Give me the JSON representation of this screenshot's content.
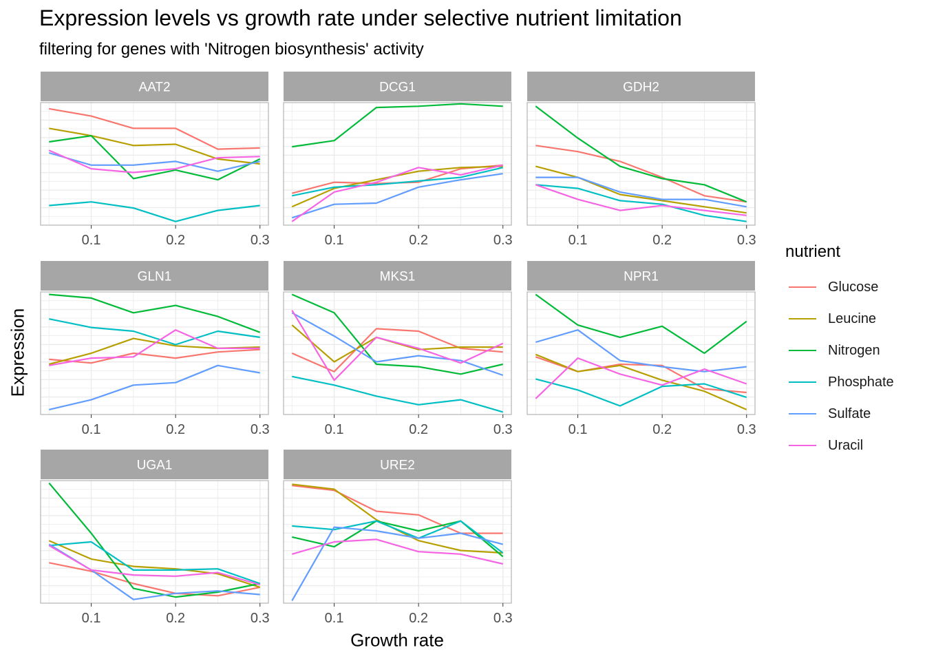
{
  "title": "Expression levels vs growth rate under selective nutrient limitation",
  "subtitle": "filtering for genes with 'Nitrogen biosynthesis' activity",
  "chart_data": {
    "type": "line",
    "title": "Expression levels vs growth rate under selective nutrient limitation",
    "subtitle": "filtering for genes with 'Nitrogen biosynthesis' activity",
    "xlabel": "Growth rate",
    "ylabel": "Expression",
    "x": [
      0.05,
      0.1,
      0.15,
      0.2,
      0.25,
      0.3
    ],
    "xlim": [
      0.04,
      0.31
    ],
    "x_ticks": [
      0.1,
      0.2,
      0.3
    ],
    "x_tick_labels": [
      "0.1",
      "0.2",
      "0.3"
    ],
    "ylim": [
      0,
      1
    ],
    "y_tick_labels_shown": false,
    "grid": true,
    "legend_position": "right",
    "legend": {
      "title": "nutrient",
      "items": [
        {
          "label": "Glucose",
          "color": "#F8766D"
        },
        {
          "label": "Leucine",
          "color": "#B79F00"
        },
        {
          "label": "Nitrogen",
          "color": "#00BA38"
        },
        {
          "label": "Phosphate",
          "color": "#00BFC4"
        },
        {
          "label": "Sulfate",
          "color": "#619CFF"
        },
        {
          "label": "Uracil",
          "color": "#F564E3"
        }
      ]
    },
    "panels": [
      {
        "gene": "AAT2",
        "series": [
          {
            "name": "Glucose",
            "values": [
              0.95,
              0.89,
              0.79,
              0.79,
              0.62,
              0.63
            ]
          },
          {
            "name": "Leucine",
            "values": [
              0.79,
              0.73,
              0.65,
              0.66,
              0.54,
              0.5
            ]
          },
          {
            "name": "Nitrogen",
            "values": [
              0.68,
              0.73,
              0.38,
              0.45,
              0.37,
              0.54
            ]
          },
          {
            "name": "Phosphate",
            "values": [
              0.16,
              0.19,
              0.14,
              0.03,
              0.12,
              0.16
            ]
          },
          {
            "name": "Sulfate",
            "values": [
              0.59,
              0.49,
              0.49,
              0.52,
              0.44,
              0.52
            ]
          },
          {
            "name": "Uracil",
            "values": [
              0.61,
              0.46,
              0.43,
              0.46,
              0.55,
              0.56
            ]
          }
        ]
      },
      {
        "gene": "DCG1",
        "series": [
          {
            "name": "Glucose",
            "values": [
              0.26,
              0.35,
              0.34,
              0.35,
              0.46,
              0.49
            ]
          },
          {
            "name": "Leucine",
            "values": [
              0.15,
              0.3,
              0.37,
              0.44,
              0.47,
              0.48
            ]
          },
          {
            "name": "Nitrogen",
            "values": [
              0.64,
              0.69,
              0.96,
              0.97,
              0.99,
              0.97
            ]
          },
          {
            "name": "Phosphate",
            "values": [
              0.24,
              0.31,
              0.33,
              0.36,
              0.39,
              0.47
            ]
          },
          {
            "name": "Sulfate",
            "values": [
              0.06,
              0.17,
              0.18,
              0.31,
              0.37,
              0.42
            ]
          },
          {
            "name": "Uracil",
            "values": [
              0.03,
              0.27,
              0.35,
              0.47,
              0.41,
              0.49
            ]
          }
        ]
      },
      {
        "gene": "GDH2",
        "series": [
          {
            "name": "Glucose",
            "values": [
              0.65,
              0.6,
              0.52,
              0.39,
              0.24,
              0.19
            ]
          },
          {
            "name": "Leucine",
            "values": [
              0.48,
              0.39,
              0.25,
              0.2,
              0.15,
              0.1
            ]
          },
          {
            "name": "Nitrogen",
            "values": [
              0.97,
              0.71,
              0.48,
              0.38,
              0.33,
              0.19
            ]
          },
          {
            "name": "Phosphate",
            "values": [
              0.33,
              0.3,
              0.2,
              0.17,
              0.08,
              0.03
            ]
          },
          {
            "name": "Sulfate",
            "values": [
              0.39,
              0.39,
              0.27,
              0.21,
              0.21,
              0.15
            ]
          },
          {
            "name": "Uracil",
            "values": [
              0.33,
              0.21,
              0.12,
              0.16,
              0.12,
              0.08
            ]
          }
        ]
      },
      {
        "gene": "GLN1",
        "series": [
          {
            "name": "Glucose",
            "values": [
              0.45,
              0.42,
              0.5,
              0.46,
              0.51,
              0.53
            ]
          },
          {
            "name": "Leucine",
            "values": [
              0.41,
              0.5,
              0.62,
              0.56,
              0.54,
              0.55
            ]
          },
          {
            "name": "Nitrogen",
            "values": [
              0.98,
              0.95,
              0.83,
              0.89,
              0.8,
              0.67
            ]
          },
          {
            "name": "Phosphate",
            "values": [
              0.78,
              0.71,
              0.68,
              0.57,
              0.68,
              0.63
            ]
          },
          {
            "name": "Sulfate",
            "values": [
              0.04,
              0.12,
              0.24,
              0.26,
              0.4,
              0.34
            ]
          },
          {
            "name": "Uracil",
            "values": [
              0.4,
              0.46,
              0.47,
              0.69,
              0.54,
              0.54
            ]
          }
        ]
      },
      {
        "gene": "MKS1",
        "series": [
          {
            "name": "Glucose",
            "values": [
              0.5,
              0.35,
              0.7,
              0.68,
              0.54,
              0.51
            ]
          },
          {
            "name": "Leucine",
            "values": [
              0.73,
              0.43,
              0.63,
              0.53,
              0.55,
              0.55
            ]
          },
          {
            "name": "Nitrogen",
            "values": [
              0.98,
              0.83,
              0.41,
              0.39,
              0.33,
              0.41
            ]
          },
          {
            "name": "Phosphate",
            "values": [
              0.31,
              0.24,
              0.15,
              0.08,
              0.12,
              0.02
            ]
          },
          {
            "name": "Sulfate",
            "values": [
              0.83,
              0.64,
              0.43,
              0.48,
              0.44,
              0.32
            ]
          },
          {
            "name": "Uracil",
            "values": [
              0.85,
              0.28,
              0.63,
              0.54,
              0.42,
              0.58
            ]
          }
        ]
      },
      {
        "gene": "NPR1",
        "series": [
          {
            "name": "Glucose",
            "values": [
              0.47,
              0.35,
              0.41,
              0.4,
              0.21,
              0.18
            ]
          },
          {
            "name": "Leucine",
            "values": [
              0.49,
              0.35,
              0.4,
              0.28,
              0.19,
              0.04
            ]
          },
          {
            "name": "Nitrogen",
            "values": [
              0.98,
              0.73,
              0.63,
              0.72,
              0.5,
              0.76
            ]
          },
          {
            "name": "Phosphate",
            "values": [
              0.29,
              0.2,
              0.07,
              0.23,
              0.25,
              0.14
            ]
          },
          {
            "name": "Sulfate",
            "values": [
              0.59,
              0.69,
              0.44,
              0.39,
              0.35,
              0.39
            ]
          },
          {
            "name": "Uracil",
            "values": [
              0.13,
              0.46,
              0.33,
              0.24,
              0.37,
              0.25
            ]
          }
        ]
      },
      {
        "gene": "UGA1",
        "series": [
          {
            "name": "Glucose",
            "values": [
              0.33,
              0.26,
              0.16,
              0.08,
              0.06,
              0.13
            ]
          },
          {
            "name": "Leucine",
            "values": [
              0.51,
              0.36,
              0.3,
              0.28,
              0.24,
              0.13
            ]
          },
          {
            "name": "Nitrogen",
            "values": [
              0.98,
              0.57,
              0.12,
              0.05,
              0.09,
              0.16
            ]
          },
          {
            "name": "Phosphate",
            "values": [
              0.47,
              0.5,
              0.27,
              0.27,
              0.28,
              0.16
            ]
          },
          {
            "name": "Sulfate",
            "values": [
              0.48,
              0.27,
              0.03,
              0.08,
              0.1,
              0.07
            ]
          },
          {
            "name": "Uracil",
            "values": [
              0.47,
              0.27,
              0.23,
              0.22,
              0.25,
              0.15
            ]
          }
        ]
      },
      {
        "gene": "URE2",
        "series": [
          {
            "name": "Glucose",
            "values": [
              0.96,
              0.92,
              0.75,
              0.72,
              0.57,
              0.57
            ]
          },
          {
            "name": "Leucine",
            "values": [
              0.97,
              0.93,
              0.68,
              0.51,
              0.43,
              0.41
            ]
          },
          {
            "name": "Nitrogen",
            "values": [
              0.54,
              0.46,
              0.67,
              0.59,
              0.67,
              0.38
            ]
          },
          {
            "name": "Phosphate",
            "values": [
              0.63,
              0.6,
              0.67,
              0.53,
              0.67,
              0.41
            ]
          },
          {
            "name": "Sulfate",
            "values": [
              0.02,
              0.62,
              0.59,
              0.53,
              0.57,
              0.48
            ]
          },
          {
            "name": "Uracil",
            "values": [
              0.4,
              0.5,
              0.52,
              0.42,
              0.4,
              0.32
            ]
          }
        ]
      }
    ]
  }
}
